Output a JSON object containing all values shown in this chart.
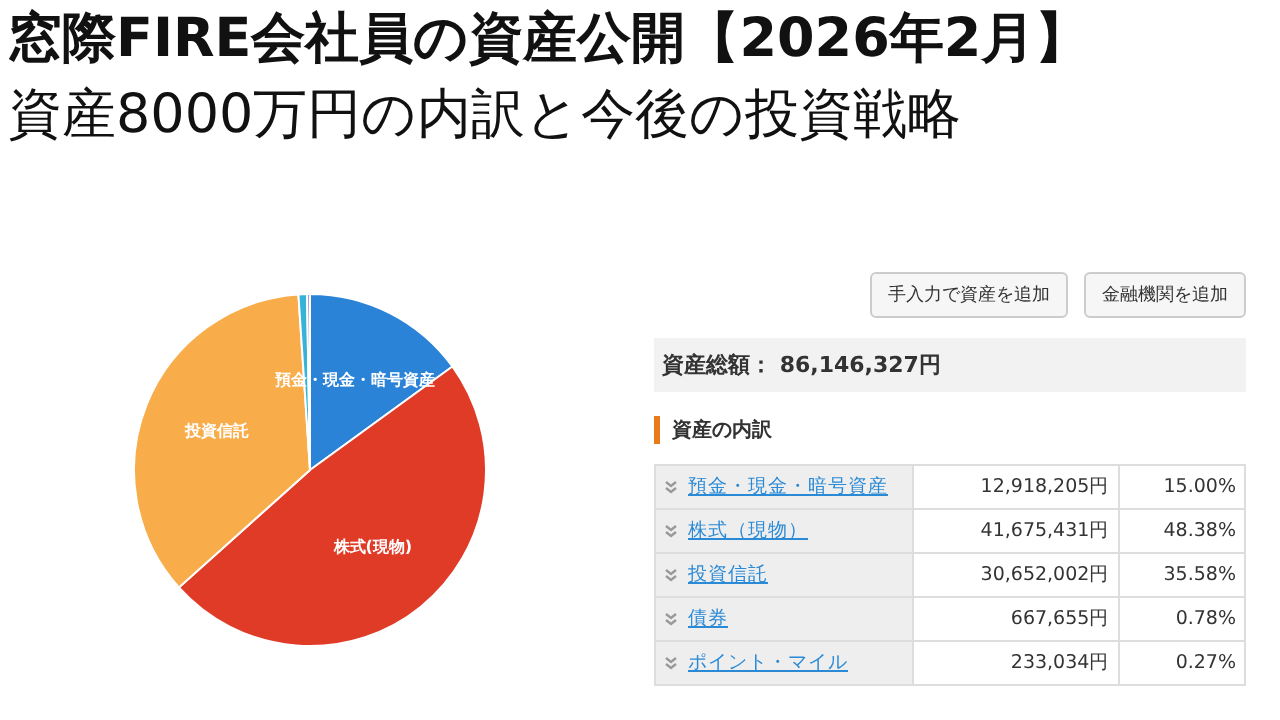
{
  "chart_data": [
    {
      "type": "pie",
      "title": "窓際FIRE会社員の資産公開【2026年2月】",
      "subtitle": "資産8000万円の内訳と今後の投資戦略",
      "categories": [
        "預金・現金・暗号資産",
        "株式(現物)",
        "投資信託",
        null,
        null
      ],
      "values": [
        15.0,
        48.38,
        35.58,
        0.78,
        0.27
      ],
      "colors": [
        "#2b83d8",
        "#e03b26",
        "#f8ad4a",
        "#36b3d9",
        "#a98fd4"
      ],
      "legend": false
    },
    {
      "type": "other",
      "categories": [
        "預金・現金・暗号資産",
        "株式（現物）",
        "投資信託",
        "債券",
        "ポイント・マイル"
      ],
      "value_labels": [
        "12,918,205円",
        "41,675,431円",
        "30,652,002円",
        "667,655円",
        "233,034円"
      ],
      "annotations": [
        "手入力で資産を追加",
        "金融機関を追加",
        "資産総額： 86,146,327円",
        "資産の内訳",
        "15.00%",
        "48.38%",
        "35.58%",
        "0.78%",
        "0.27%"
      ]
    }
  ]
}
